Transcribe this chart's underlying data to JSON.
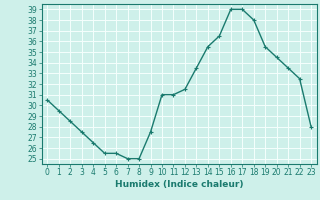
{
  "x": [
    0,
    1,
    2,
    3,
    4,
    5,
    6,
    7,
    8,
    9,
    10,
    11,
    12,
    13,
    14,
    15,
    16,
    17,
    18,
    19,
    20,
    21,
    22,
    23
  ],
  "y": [
    30.5,
    29.5,
    28.5,
    27.5,
    26.5,
    25.5,
    25.5,
    25.0,
    25.0,
    27.5,
    31.0,
    31.0,
    31.5,
    33.5,
    35.5,
    36.5,
    39.0,
    39.0,
    38.0,
    35.5,
    34.5,
    33.5,
    32.5,
    28.0
  ],
  "xlabel": "Humidex (Indice chaleur)",
  "xlim": [
    -0.5,
    23.5
  ],
  "ylim": [
    24.5,
    39.5
  ],
  "yticks": [
    25,
    26,
    27,
    28,
    29,
    30,
    31,
    32,
    33,
    34,
    35,
    36,
    37,
    38,
    39
  ],
  "xticks": [
    0,
    1,
    2,
    3,
    4,
    5,
    6,
    7,
    8,
    9,
    10,
    11,
    12,
    13,
    14,
    15,
    16,
    17,
    18,
    19,
    20,
    21,
    22,
    23
  ],
  "line_color": "#1a7a6e",
  "marker_color": "#1a7a6e",
  "bg_color": "#cef0ea",
  "grid_color": "#f5fffd",
  "label_color": "#1a7a6e",
  "font_size": 5.5,
  "xlabel_font_size": 6.5,
  "marker_size": 3,
  "linewidth": 1.0
}
